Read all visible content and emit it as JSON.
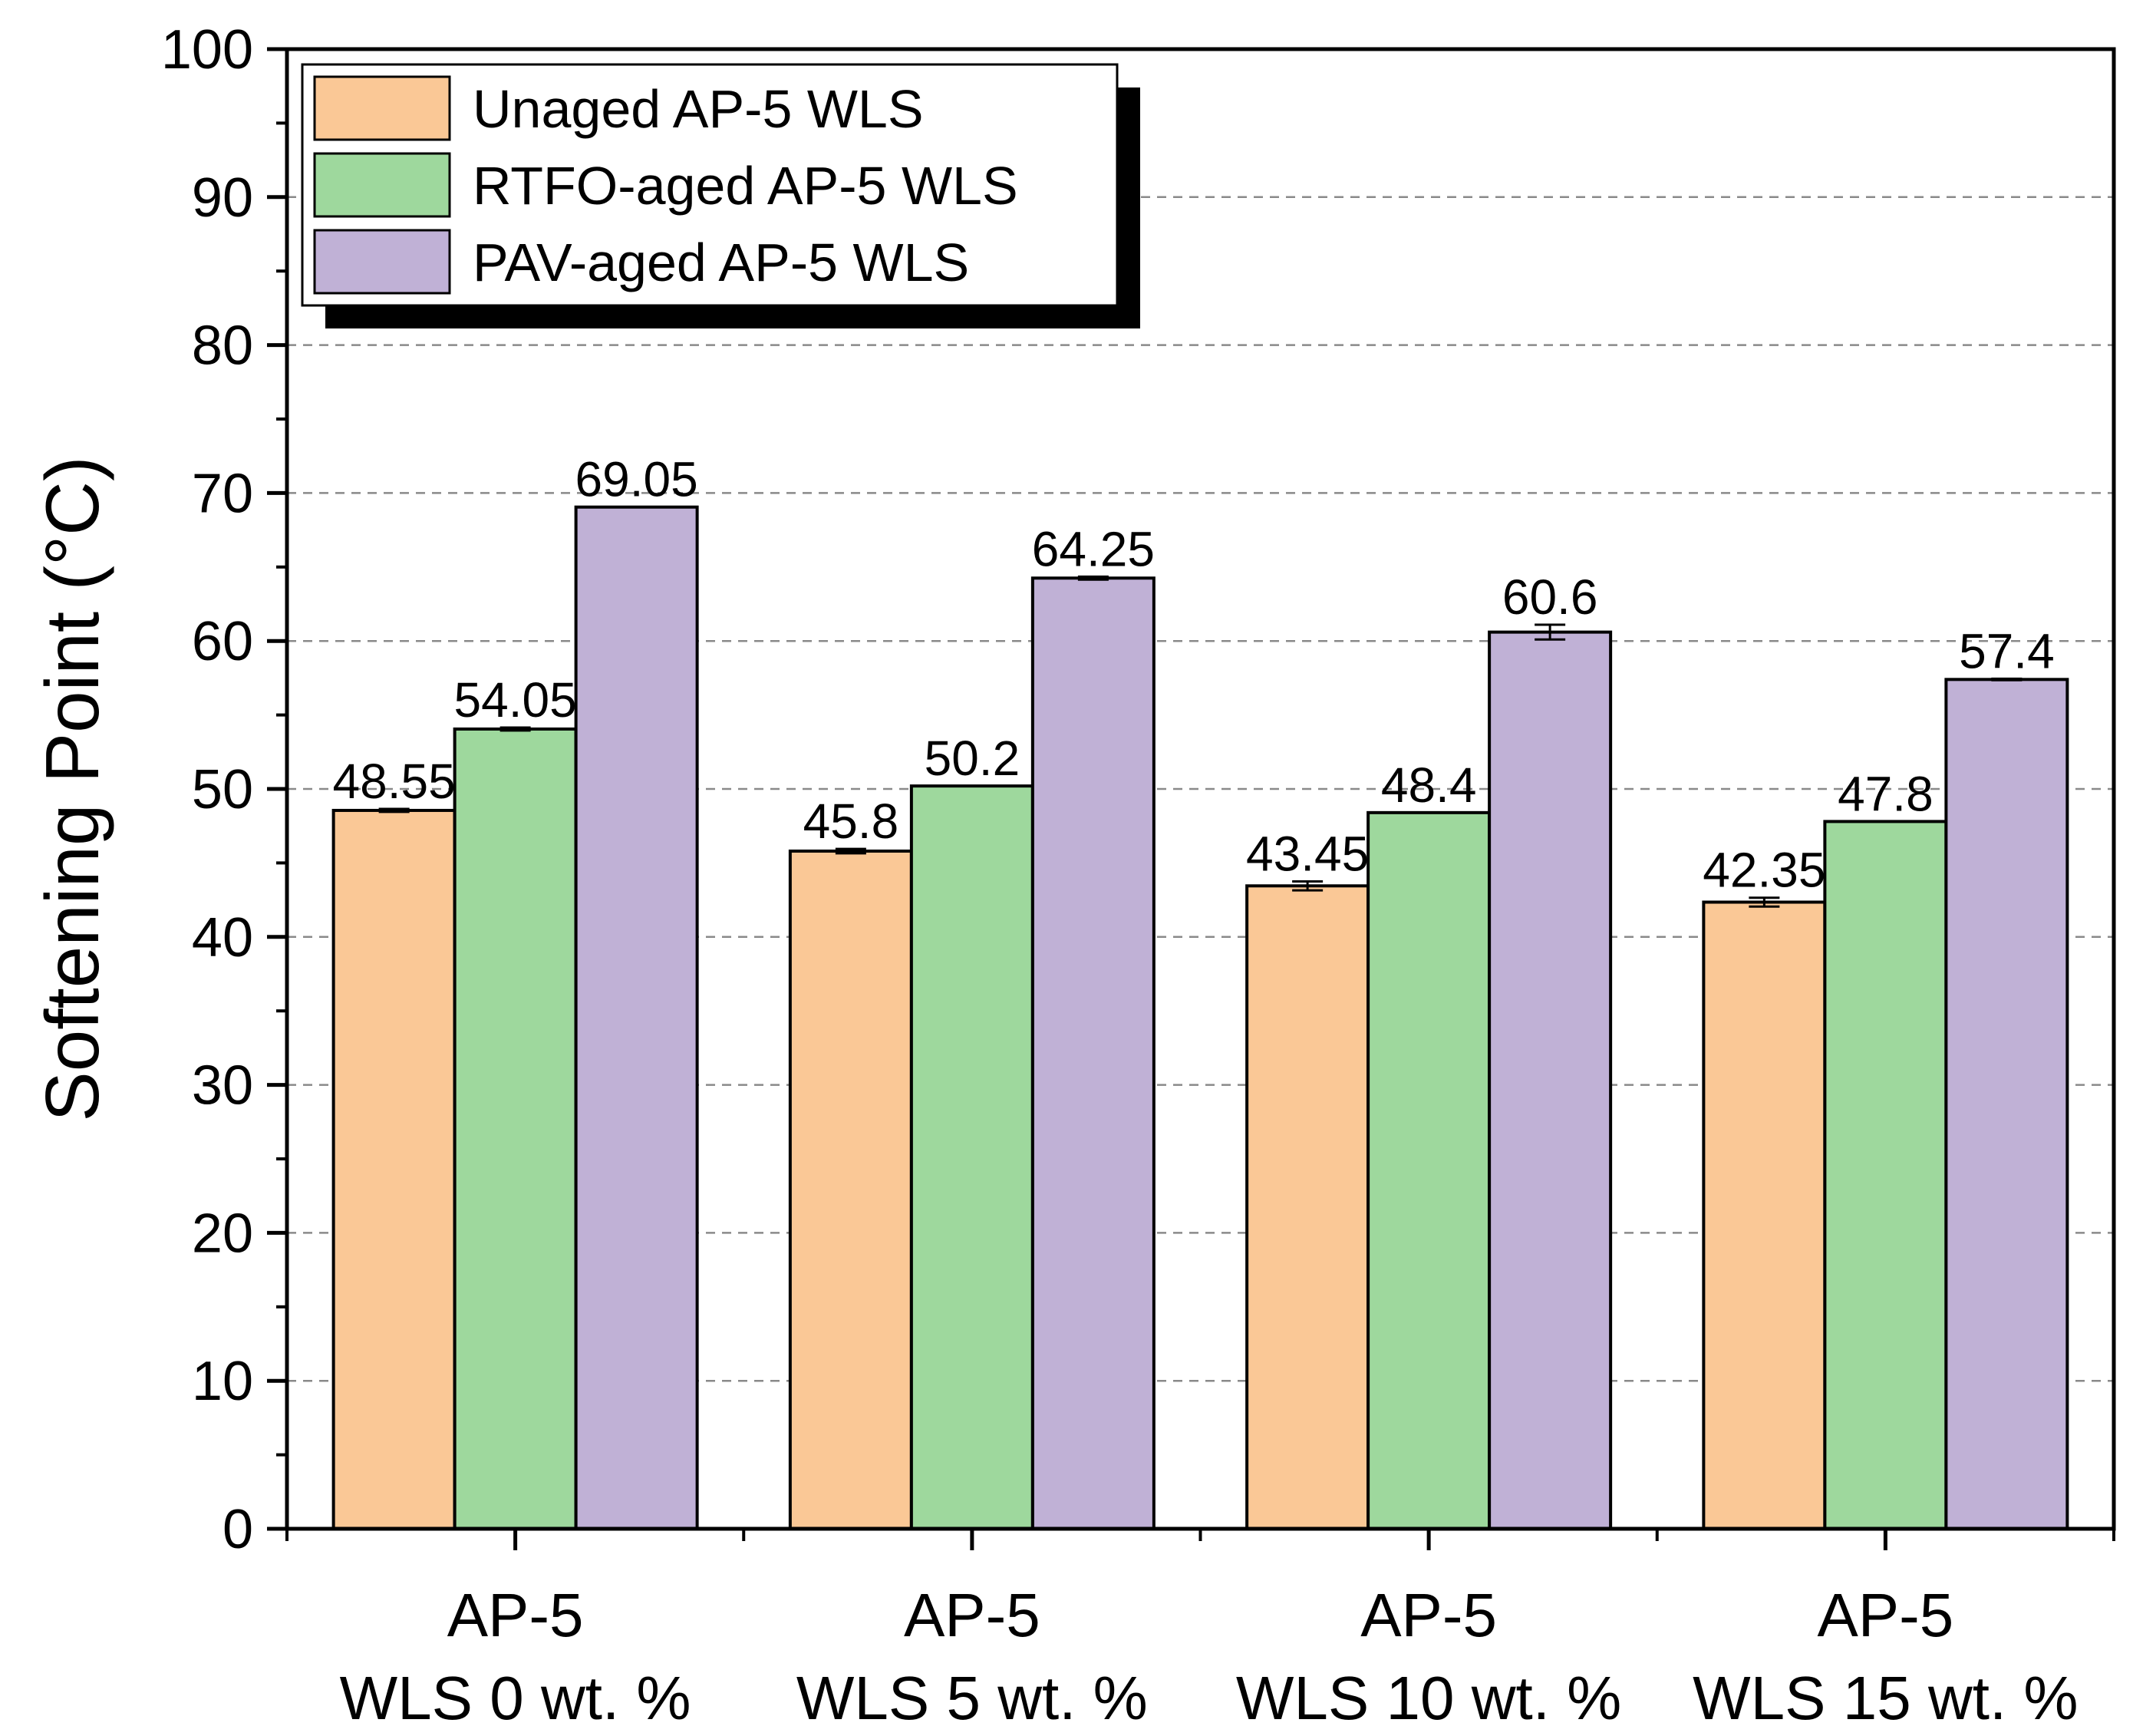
{
  "chart_data": {
    "type": "bar",
    "title": "",
    "xlabel": "",
    "ylabel": "Softening Point (°C)",
    "ylim": [
      0,
      100
    ],
    "yticks": [
      0,
      10,
      20,
      30,
      40,
      50,
      60,
      70,
      80,
      90,
      100
    ],
    "grid": "horizontal dashed",
    "legend_position": "top-left",
    "categories": [
      {
        "line1": "AP-5",
        "line2": "WLS 0 wt. %"
      },
      {
        "line1": "AP-5",
        "line2": "WLS 5 wt. %"
      },
      {
        "line1": "AP-5",
        "line2": "WLS 10 wt. %"
      },
      {
        "line1": "AP-5",
        "line2": "WLS 15 wt. %"
      }
    ],
    "series": [
      {
        "name": "Unaged AP-5 WLS",
        "color": "#fac896",
        "values": [
          48.55,
          45.8,
          43.45,
          42.35
        ],
        "labels": [
          "48.55",
          "45.8",
          "43.45",
          "42.35"
        ],
        "errors": [
          0.1,
          0.15,
          0.3,
          0.3
        ]
      },
      {
        "name": "RTFO-aged AP-5 WLS",
        "color": "#9ed89d",
        "values": [
          54.05,
          50.2,
          48.4,
          47.8
        ],
        "labels": [
          "54.05",
          "50.2",
          "48.4",
          "47.8"
        ],
        "errors": [
          0.1,
          0,
          0,
          0
        ]
      },
      {
        "name": "PAV-aged AP-5 WLS",
        "color": "#c0b1d6",
        "values": [
          69.05,
          64.25,
          60.6,
          57.4
        ],
        "labels": [
          "69.05",
          "64.25",
          "60.6",
          "57.4"
        ],
        "errors": [
          0,
          0.1,
          0.5,
          0.05
        ]
      }
    ]
  }
}
